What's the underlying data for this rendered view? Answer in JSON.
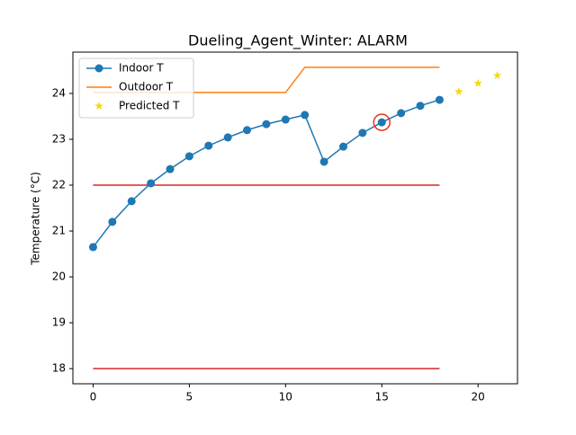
{
  "chart_data": {
    "type": "line",
    "title": "Dueling_Agent_Winter: ALARM",
    "y_label": "Temperature (°C)",
    "xlim": [
      -1.05,
      22.05
    ],
    "xticks": [
      0,
      5,
      10,
      15,
      20
    ],
    "ylim": [
      17.67,
      24.9
    ],
    "yticks": [
      18,
      19,
      20,
      21,
      22,
      23,
      24
    ],
    "legend": "upper left",
    "series": [
      {
        "name": "Indoor T",
        "color": "#1f77b4",
        "style": "line-marker",
        "x": [
          0,
          1,
          2,
          3,
          4,
          5,
          6,
          7,
          8,
          9,
          10,
          11,
          12,
          13,
          14,
          15,
          16,
          17,
          18
        ],
        "values": [
          20.65,
          21.2,
          21.65,
          22.04,
          22.35,
          22.63,
          22.86,
          23.04,
          23.2,
          23.33,
          23.43,
          23.53,
          22.51,
          22.84,
          23.14,
          23.37,
          23.57,
          23.73,
          23.86
        ],
        "highlight_index": 15,
        "highlight_color": "#e8331c"
      },
      {
        "name": "Outdoor T",
        "color": "#ff7f0e",
        "style": "line",
        "x": [
          0,
          1,
          2,
          3,
          4,
          5,
          6,
          7,
          8,
          9,
          10,
          11,
          12,
          13,
          14,
          15,
          16,
          17,
          18
        ],
        "values": [
          24.02,
          24.02,
          24.02,
          24.02,
          24.02,
          24.02,
          24.02,
          24.02,
          24.02,
          24.02,
          24.02,
          24.57,
          24.57,
          24.57,
          24.57,
          24.57,
          24.57,
          24.57,
          24.57
        ]
      },
      {
        "name": "Predicted T",
        "color": "#f5d90a",
        "style": "star",
        "x": [
          19,
          20,
          21
        ],
        "values": [
          24.04,
          24.22,
          24.39
        ]
      }
    ],
    "thresholds": [
      22,
      18
    ],
    "threshold_color": "#d62728"
  }
}
